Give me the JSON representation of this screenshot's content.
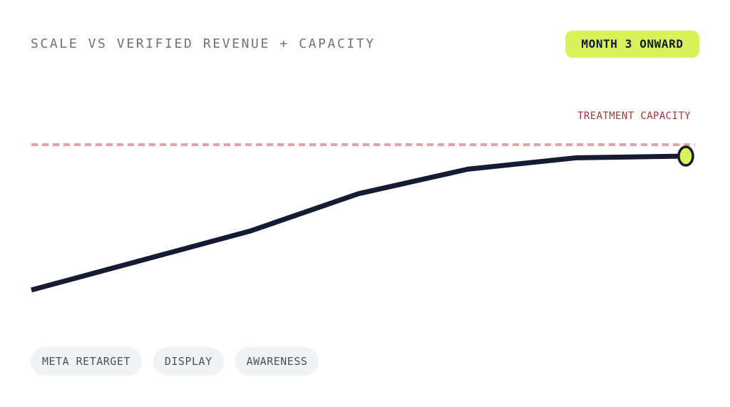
{
  "header": {
    "title": "SCALE VS VERIFIED REVENUE + CAPACITY",
    "badge": "MONTH 3 ONWARD"
  },
  "colors": {
    "line": "#141b33",
    "capacity": "#e0a3a6",
    "capacity_label": "#a3363b",
    "accent": "#d9f25a"
  },
  "chart_data": {
    "type": "line",
    "title": "SCALE VS VERIFIED REVENUE + CAPACITY",
    "xlabel": "",
    "ylabel": "",
    "x": [
      0,
      1,
      2,
      3,
      4,
      5,
      6
    ],
    "xlim": [
      0,
      6
    ],
    "ylim": [
      0,
      100
    ],
    "grid": false,
    "series": [
      {
        "values": [
          21,
          39,
          57,
          80,
          95,
          102,
          103
        ],
        "end_marker": true
      }
    ],
    "reference_lines": [
      {
        "label": "TREATMENT CAPACITY",
        "value": 110,
        "style": "dashed"
      }
    ]
  },
  "chips": [
    {
      "label": "META RETARGET"
    },
    {
      "label": "DISPLAY"
    },
    {
      "label": "AWARENESS"
    }
  ]
}
